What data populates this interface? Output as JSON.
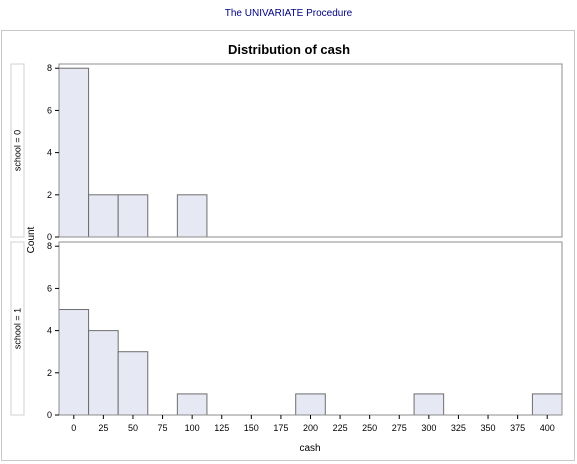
{
  "header": {
    "procedure_title": "The UNIVARIATE Procedure"
  },
  "chart_data": {
    "type": "bar",
    "title": "Distribution of cash",
    "xlabel": "cash",
    "ylabel": "Count",
    "bin_width": 25,
    "xlim": [
      -12.5,
      412.5
    ],
    "x_ticks": [
      0,
      25,
      50,
      75,
      100,
      125,
      150,
      175,
      200,
      225,
      250,
      275,
      300,
      325,
      350,
      375,
      400
    ],
    "ylim": [
      0,
      8.2
    ],
    "y_ticks": [
      0,
      2,
      4,
      6,
      8
    ],
    "bar_color": "#e6e8f3",
    "bar_edge_color": "#6e6e6e",
    "grid": false,
    "legend": "none",
    "panels": [
      {
        "label": "school = 0",
        "bins": [
          0,
          25,
          50,
          75,
          100
        ],
        "counts": [
          8,
          2,
          2,
          0,
          2
        ]
      },
      {
        "label": "school = 1",
        "bins": [
          0,
          25,
          50,
          75,
          100,
          125,
          150,
          175,
          200,
          225,
          250,
          275,
          300,
          325,
          350,
          375,
          400
        ],
        "counts": [
          5,
          4,
          3,
          0,
          1,
          0,
          0,
          0,
          1,
          0,
          0,
          0,
          1,
          0,
          0,
          0,
          1
        ]
      }
    ]
  }
}
